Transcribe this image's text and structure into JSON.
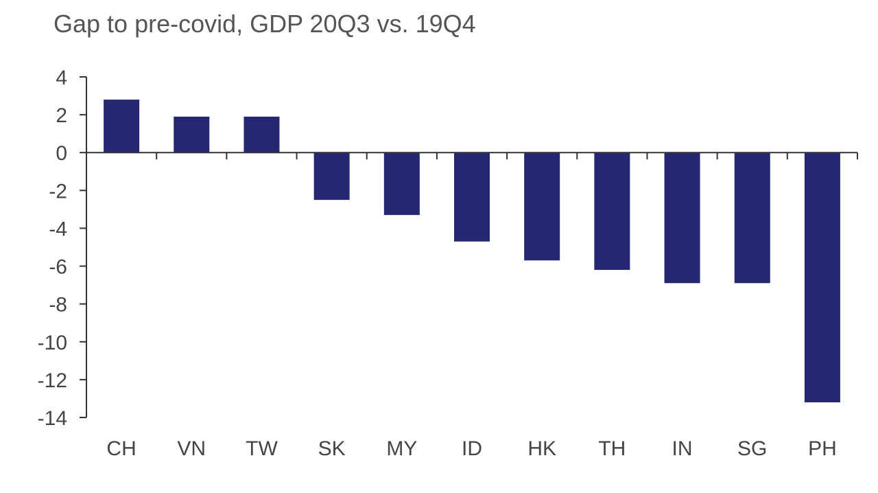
{
  "chart_data": {
    "type": "bar",
    "title": "Gap to pre-covid, GDP 20Q3 vs. 19Q4",
    "xlabel": "",
    "ylabel": "",
    "categories": [
      "CH",
      "VN",
      "TW",
      "SK",
      "MY",
      "ID",
      "HK",
      "TH",
      "IN",
      "SG",
      "PH"
    ],
    "values": [
      2.8,
      1.9,
      1.9,
      -2.5,
      -3.3,
      -4.7,
      -5.7,
      -6.2,
      -6.9,
      -6.9,
      -13.2
    ],
    "ylim": [
      -14,
      4
    ],
    "yticks": [
      4,
      2,
      0,
      -2,
      -4,
      -6,
      -8,
      -10,
      -12,
      -14
    ],
    "grid": false,
    "bar_color": "#252870",
    "axis_color": "#333333"
  }
}
